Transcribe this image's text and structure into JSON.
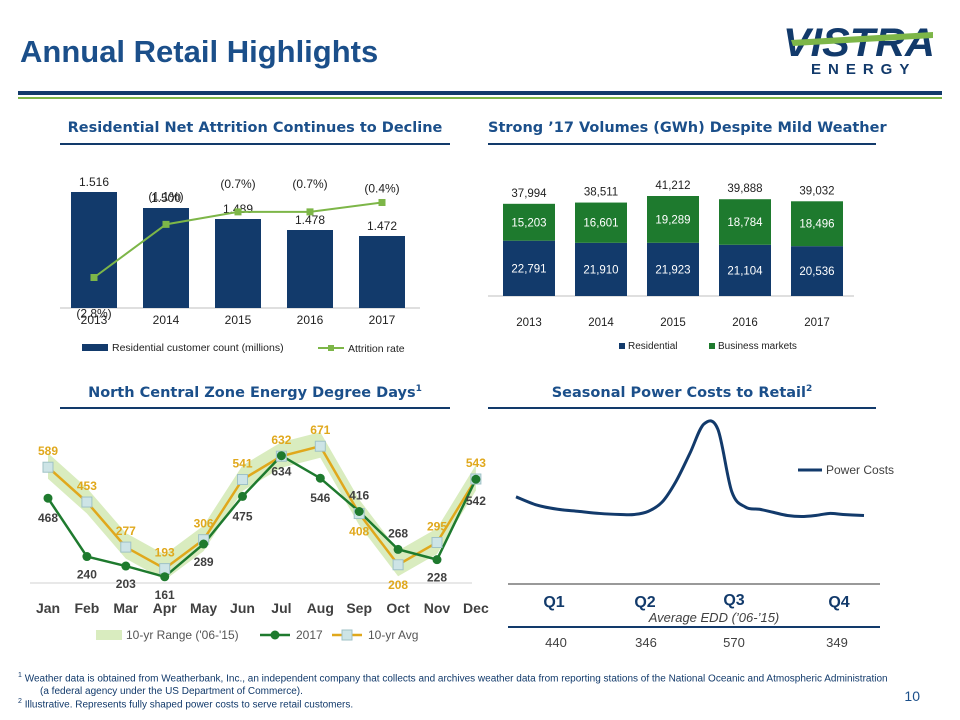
{
  "page": {
    "title": "Annual Retail Highlights",
    "logo_word": "VISTRA",
    "logo_sub": "ENERGY",
    "page_number": "10",
    "colors": {
      "navy": "#123a6b",
      "blue": "#1b4f8a",
      "green": "#7db648",
      "dark_green": "#1e7a2e",
      "gold": "#e0a81c"
    }
  },
  "footnotes": {
    "f1_sup": "1",
    "f1_line1": "Weather data is obtained from Weatherbank, Inc., an independent company that collects and archives weather data from reporting stations of the National Oceanic and Atmospheric Administration",
    "f1_line2": "(a federal agency under the US Department of Commerce).",
    "f2_sup": "2",
    "f2_text": "Illustrative.  Represents fully shaped power costs to serve retail customers."
  },
  "sections": {
    "attrition": "Residential Net Attrition Continues to Decline",
    "volumes": "Strong ’17 Volumes (GWh) Despite Mild Weather",
    "degree_days": "North Central Zone Energy Degree Days",
    "degree_days_sup": "1",
    "power_costs": "Seasonal Power Costs to Retail",
    "power_costs_sup": "2"
  },
  "chart_data": [
    {
      "id": "attrition",
      "type": "bar",
      "categories": [
        "2013",
        "2014",
        "2015",
        "2016",
        "2017"
      ],
      "series": [
        {
          "name": "Residential customer count (millions)",
          "type": "bar",
          "values": [
            1.516,
            1.5,
            1.489,
            1.478,
            1.472
          ],
          "labels": [
            "1.516",
            "1.500",
            "1.489",
            "1.478",
            "1.472"
          ]
        },
        {
          "name": "Attrition rate",
          "type": "line",
          "values": [
            -2.8,
            -1.1,
            -0.7,
            -0.7,
            -0.4
          ],
          "labels": [
            "(2.8%)",
            "(1.1%)",
            "(0.7%)",
            "(0.7%)",
            "(0.4%)"
          ]
        }
      ],
      "legend": [
        "Residential customer count (millions)",
        "Attrition rate"
      ],
      "legend_position": "bottom"
    },
    {
      "id": "volumes",
      "type": "bar",
      "stacked": true,
      "categories": [
        "2013",
        "2014",
        "2015",
        "2016",
        "2017"
      ],
      "series": [
        {
          "name": "Residential",
          "values": [
            22791,
            21910,
            21923,
            21104,
            20536
          ],
          "labels": [
            "22,791",
            "21,910",
            "21,923",
            "21,104",
            "20,536"
          ]
        },
        {
          "name": "Business markets",
          "values": [
            15203,
            16601,
            19289,
            18784,
            18496
          ],
          "labels": [
            "15,203",
            "16,601",
            "19,289",
            "18,784",
            "18,496"
          ]
        }
      ],
      "totals": [
        37994,
        38511,
        41212,
        39888,
        39032
      ],
      "total_labels": [
        "37,994",
        "38,511",
        "41,212",
        "39,888",
        "39,032"
      ],
      "legend": [
        "Residential",
        "Business markets"
      ],
      "legend_position": "bottom"
    },
    {
      "id": "degree_days",
      "type": "line",
      "categories": [
        "Jan",
        "Feb",
        "Mar",
        "Apr",
        "May",
        "Jun",
        "Jul",
        "Aug",
        "Sep",
        "Oct",
        "Nov",
        "Dec"
      ],
      "series": [
        {
          "name": "2017",
          "values": [
            468,
            240,
            203,
            161,
            289,
            475,
            634,
            546,
            416,
            268,
            228,
            542
          ]
        },
        {
          "name": "10-yr Avg",
          "values": [
            589,
            453,
            277,
            193,
            306,
            541,
            632,
            671,
            408,
            208,
            295,
            543
          ]
        }
      ],
      "range_series": "10-yr Range ('06-'15)",
      "legend": [
        "10-yr Range ('06-'15)",
        "2017",
        "10-yr Avg"
      ],
      "legend_position": "bottom"
    },
    {
      "id": "power_costs",
      "type": "line",
      "illustrative": true,
      "series": [
        {
          "name": "Power Costs",
          "x": [
            0,
            0.06,
            0.12,
            0.18,
            0.24,
            0.3,
            0.34,
            0.38,
            0.42,
            0.46,
            0.5,
            0.54,
            0.58,
            0.62,
            0.66,
            0.7,
            0.74,
            0.78,
            0.82,
            0.86,
            0.9,
            0.94,
            1.0
          ],
          "values": [
            0.3,
            0.22,
            0.18,
            0.16,
            0.14,
            0.13,
            0.13,
            0.16,
            0.25,
            0.45,
            0.72,
            1.0,
            0.95,
            0.35,
            0.2,
            0.18,
            0.15,
            0.12,
            0.11,
            0.12,
            0.14,
            0.13,
            0.12
          ]
        }
      ],
      "legend": [
        "Power Costs"
      ],
      "legend_position": "right",
      "quarters": [
        "Q1",
        "Q2",
        "Q3",
        "Q4"
      ],
      "edd_caption": "Average EDD (’06-’15)",
      "edd_values": [
        "440",
        "346",
        "570",
        "349"
      ]
    }
  ]
}
